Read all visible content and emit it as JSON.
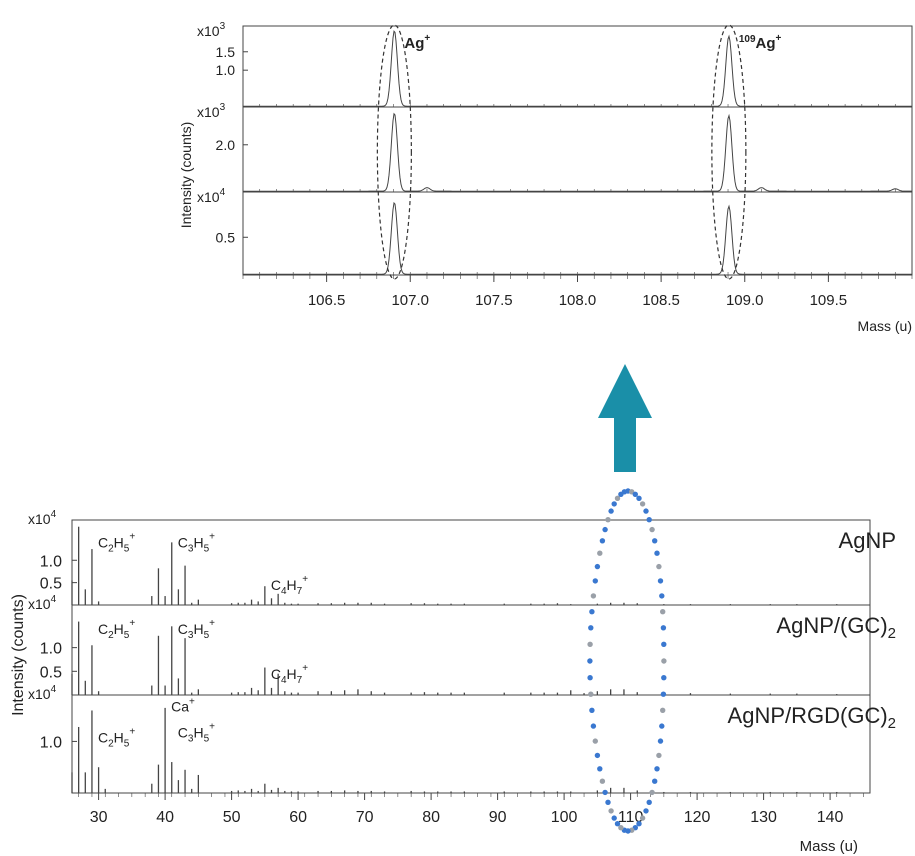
{
  "chart_data": [
    {
      "type": "line",
      "panel": "zoom",
      "xlabel": "Mass (u)",
      "ylabel": "Intensity (counts)",
      "xlim": [
        106.0,
        110.0
      ],
      "xticks": [
        "106.5",
        "107.0",
        "107.5",
        "108.0",
        "108.5",
        "109.0",
        "109.5"
      ],
      "xtick_values": [
        106.5,
        107.0,
        107.5,
        108.0,
        108.5,
        109.0,
        109.5
      ],
      "peak_labels": [
        {
          "text": "Ag",
          "sup": "+",
          "pre": "",
          "x": 106.905
        },
        {
          "text": "Ag",
          "sup": "+",
          "pre": "109",
          "x": 108.905
        }
      ],
      "subplots": [
        {
          "multiplier": "x10",
          "multiplier_exp": "3",
          "ylim": [
            0,
            2.2
          ],
          "yticks": [
            "1.5",
            "1.0"
          ],
          "ytick_values": [
            1.5,
            1.0
          ],
          "series": [
            {
              "x": [
                106.905,
                108.905
              ],
              "y": [
                2.05,
                1.9
              ]
            }
          ]
        },
        {
          "multiplier": "x10",
          "multiplier_exp": "3",
          "ylim": [
            0,
            3.6
          ],
          "yticks": [
            "2.0"
          ],
          "ytick_values": [
            2.0
          ],
          "series": [
            {
              "x": [
                106.905,
                107.1,
                108.905,
                109.1,
                109.9
              ],
              "y": [
                3.3,
                0.15,
                3.2,
                0.15,
                0.1
              ]
            }
          ]
        },
        {
          "multiplier": "x10",
          "multiplier_exp": "4",
          "ylim": [
            0,
            1.1
          ],
          "yticks": [
            "0.5"
          ],
          "ytick_values": [
            0.5
          ],
          "series": [
            {
              "x": [
                106.905,
                108.905
              ],
              "y": [
                0.95,
                0.9
              ]
            }
          ]
        }
      ]
    },
    {
      "type": "bar",
      "panel": "full",
      "xlabel": "Mass (u)",
      "ylabel": "Intensity (counts)",
      "xlim": [
        26,
        146
      ],
      "xticks": [
        "30",
        "40",
        "50",
        "60",
        "70",
        "80",
        "90",
        "100",
        "110",
        "120",
        "130",
        "140"
      ],
      "xtick_values": [
        30,
        40,
        50,
        60,
        70,
        80,
        90,
        100,
        110,
        120,
        130,
        140
      ],
      "subplots": [
        {
          "name": "AgNP",
          "name_sub": "",
          "multiplier": "x10",
          "multiplier_exp": "4",
          "ylim": [
            0,
            1.9
          ],
          "yticks": [
            "1.0",
            "0.5"
          ],
          "ytick_values": [
            1.0,
            0.5
          ],
          "labels": [
            {
              "html": [
                "C",
                "2",
                "H",
                "5",
                "+"
              ],
              "x": 29,
              "y": 1.2
            },
            {
              "html": [
                "C",
                "3",
                "H",
                "5",
                "+"
              ],
              "x": 41,
              "y": 1.2
            },
            {
              "html": [
                "C",
                "4",
                "H",
                "7",
                "+"
              ],
              "x": 55,
              "y": 0.25
            }
          ],
          "masses": [
            26,
            27,
            28,
            29,
            30,
            38,
            39,
            40,
            41,
            42,
            43,
            44,
            45,
            50,
            51,
            52,
            53,
            54,
            55,
            56,
            57,
            58,
            59,
            60,
            63,
            65,
            67,
            69,
            71,
            73,
            77,
            79,
            81,
            83,
            85,
            91,
            95,
            97,
            99,
            101,
            105,
            107,
            109,
            111,
            115,
            119,
            125,
            131,
            135,
            141
          ],
          "values": [
            0.55,
            1.75,
            0.35,
            1.25,
            0.08,
            0.2,
            0.82,
            0.2,
            1.4,
            0.35,
            0.88,
            0.05,
            0.12,
            0.04,
            0.05,
            0.05,
            0.12,
            0.08,
            0.42,
            0.15,
            0.25,
            0.05,
            0.03,
            0.03,
            0.04,
            0.04,
            0.05,
            0.05,
            0.05,
            0.03,
            0.04,
            0.04,
            0.03,
            0.03,
            0.03,
            0.03,
            0.03,
            0.03,
            0.04,
            0.02,
            0.03,
            0.05,
            0.05,
            0.04,
            0.02,
            0.02,
            0.02,
            0.02,
            0.02,
            0.02
          ]
        },
        {
          "name": "AgNP/(GC)",
          "name_sub": "2",
          "multiplier": "x10",
          "multiplier_exp": "4",
          "ylim": [
            0,
            1.9
          ],
          "yticks": [
            "1.0",
            "0.5"
          ],
          "ytick_values": [
            1.0,
            0.5
          ],
          "labels": [
            {
              "html": [
                "C",
                "2",
                "H",
                "5",
                "+"
              ],
              "x": 29,
              "y": 1.2
            },
            {
              "html": [
                "C",
                "3",
                "H",
                "5",
                "+"
              ],
              "x": 41,
              "y": 1.2
            },
            {
              "html": [
                "C",
                "4",
                "H",
                "7",
                "+"
              ],
              "x": 55,
              "y": 0.25
            }
          ],
          "masses": [
            26,
            27,
            28,
            29,
            30,
            38,
            39,
            40,
            41,
            42,
            43,
            44,
            45,
            50,
            51,
            52,
            53,
            54,
            55,
            56,
            57,
            58,
            59,
            60,
            63,
            65,
            67,
            69,
            71,
            73,
            77,
            79,
            81,
            83,
            85,
            91,
            95,
            97,
            99,
            101,
            103,
            105,
            107,
            109,
            111,
            115,
            119,
            125,
            131,
            135,
            141
          ],
          "values": [
            0.45,
            1.55,
            0.3,
            1.05,
            0.08,
            0.2,
            1.25,
            0.2,
            1.45,
            0.35,
            1.2,
            0.05,
            0.12,
            0.05,
            0.06,
            0.06,
            0.15,
            0.1,
            0.58,
            0.15,
            0.45,
            0.08,
            0.05,
            0.05,
            0.08,
            0.08,
            0.1,
            0.12,
            0.08,
            0.05,
            0.05,
            0.06,
            0.05,
            0.05,
            0.05,
            0.05,
            0.05,
            0.05,
            0.05,
            0.1,
            0.04,
            0.08,
            0.12,
            0.12,
            0.06,
            0.04,
            0.04,
            0.03,
            0.03,
            0.03,
            0.02
          ]
        },
        {
          "name": "AgNP/RGD(GC)",
          "name_sub": "2",
          "multiplier": "x10",
          "multiplier_exp": "4",
          "ylim": [
            0,
            1.9
          ],
          "yticks": [
            "1.0"
          ],
          "ytick_values": [
            1.0
          ],
          "labels": [
            {
              "html": [
                "Ca",
                "",
                "",
                "",
                "+"
              ],
              "x": 40,
              "y": 1.5
            },
            {
              "html": [
                "C",
                "2",
                "H",
                "5",
                "+"
              ],
              "x": 29,
              "y": 0.9
            },
            {
              "html": [
                "C",
                "3",
                "H",
                "5",
                "+"
              ],
              "x": 41,
              "y": 1.0
            }
          ],
          "masses": [
            26,
            27,
            28,
            29,
            30,
            31,
            38,
            39,
            40,
            41,
            42,
            43,
            44,
            45,
            50,
            51,
            52,
            53,
            54,
            55,
            56,
            57,
            58,
            59,
            60,
            63,
            65,
            67,
            69,
            71,
            73,
            77,
            79,
            81,
            83,
            85,
            91,
            95,
            97,
            99,
            101,
            105,
            107,
            109,
            111,
            115,
            119,
            125,
            131,
            135,
            141
          ],
          "values": [
            0.4,
            1.28,
            0.4,
            1.6,
            0.5,
            0.08,
            0.18,
            0.55,
            1.65,
            0.6,
            0.25,
            0.45,
            0.08,
            0.35,
            0.04,
            0.05,
            0.04,
            0.08,
            0.04,
            0.18,
            0.06,
            0.1,
            0.04,
            0.03,
            0.03,
            0.04,
            0.04,
            0.05,
            0.04,
            0.04,
            0.03,
            0.04,
            0.03,
            0.03,
            0.03,
            0.03,
            0.03,
            0.03,
            0.03,
            0.03,
            0.03,
            0.05,
            0.1,
            0.1,
            0.05,
            0.02,
            0.02,
            0.02,
            0.02,
            0.02,
            0.02
          ]
        }
      ]
    }
  ],
  "colors": {
    "trace": "#444444",
    "axis": "#444444",
    "arrow": "#1a8fa8",
    "dot_blue": "#3a78d0",
    "dot_gray": "#9aa0a8"
  }
}
